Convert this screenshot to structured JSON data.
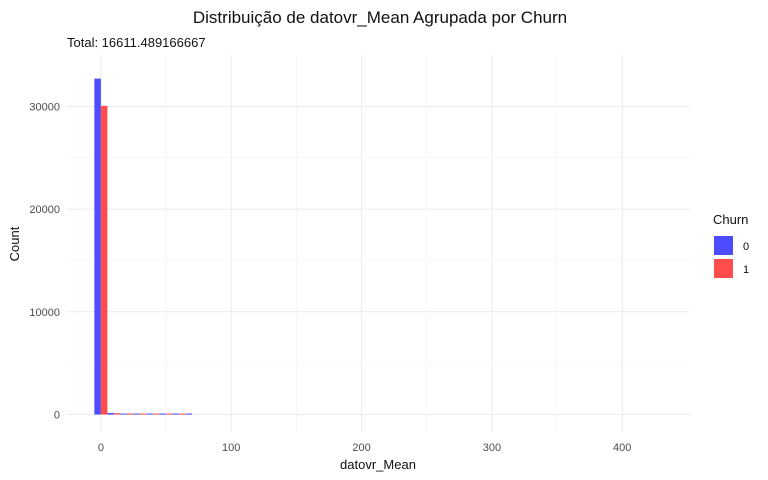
{
  "chart_data": {
    "type": "bar",
    "title": "Distribuição de datovr_Mean Agrupada por Churn",
    "subtitle": "Total: 16611.489166667",
    "xlabel": "datovr_Mean",
    "ylabel": "Count",
    "xlim": [
      -26,
      452
    ],
    "ylim": [
      -1700,
      35000
    ],
    "x_ticks": [
      0,
      100,
      200,
      300,
      400
    ],
    "x_tick_labels": [
      "0",
      "100",
      "200",
      "300",
      "400"
    ],
    "y_ticks": [
      0,
      10000,
      20000,
      30000
    ],
    "y_tick_labels": [
      "0",
      "10000",
      "20000",
      "30000"
    ],
    "grid": true,
    "bin_width": 10,
    "bins": [
      0,
      10,
      20,
      30,
      40,
      50,
      60,
      70,
      80,
      90,
      100,
      110,
      120,
      130,
      140,
      150,
      160,
      170,
      180,
      190,
      200,
      210,
      220,
      230,
      240,
      250,
      260,
      270,
      280,
      290,
      300,
      310,
      320,
      330,
      340,
      350,
      360,
      370,
      380,
      390,
      400,
      410,
      420,
      430
    ],
    "legend": {
      "title": "Churn",
      "position": "right"
    },
    "series": [
      {
        "name": "0",
        "color": "#4d4dff",
        "values": [
          32700,
          150,
          25,
          8,
          3,
          2,
          1,
          1,
          0,
          0,
          0,
          0,
          0,
          0,
          0,
          0,
          0,
          0,
          0,
          0,
          0,
          0,
          0,
          0,
          0,
          0,
          0,
          0,
          0,
          0,
          0,
          0,
          0,
          0,
          0,
          0,
          0,
          0,
          0,
          0,
          0,
          0,
          0,
          0
        ]
      },
      {
        "name": "1",
        "color": "#ff4d4d",
        "values": [
          30050,
          130,
          20,
          6,
          2,
          1,
          1,
          0,
          0,
          0,
          0,
          0,
          0,
          0,
          0,
          0,
          0,
          0,
          0,
          0,
          0,
          0,
          0,
          0,
          0,
          0,
          0,
          0,
          0,
          0,
          0,
          0,
          0,
          0,
          0,
          0,
          0,
          0,
          0,
          0,
          0,
          0,
          0,
          0
        ]
      }
    ]
  }
}
